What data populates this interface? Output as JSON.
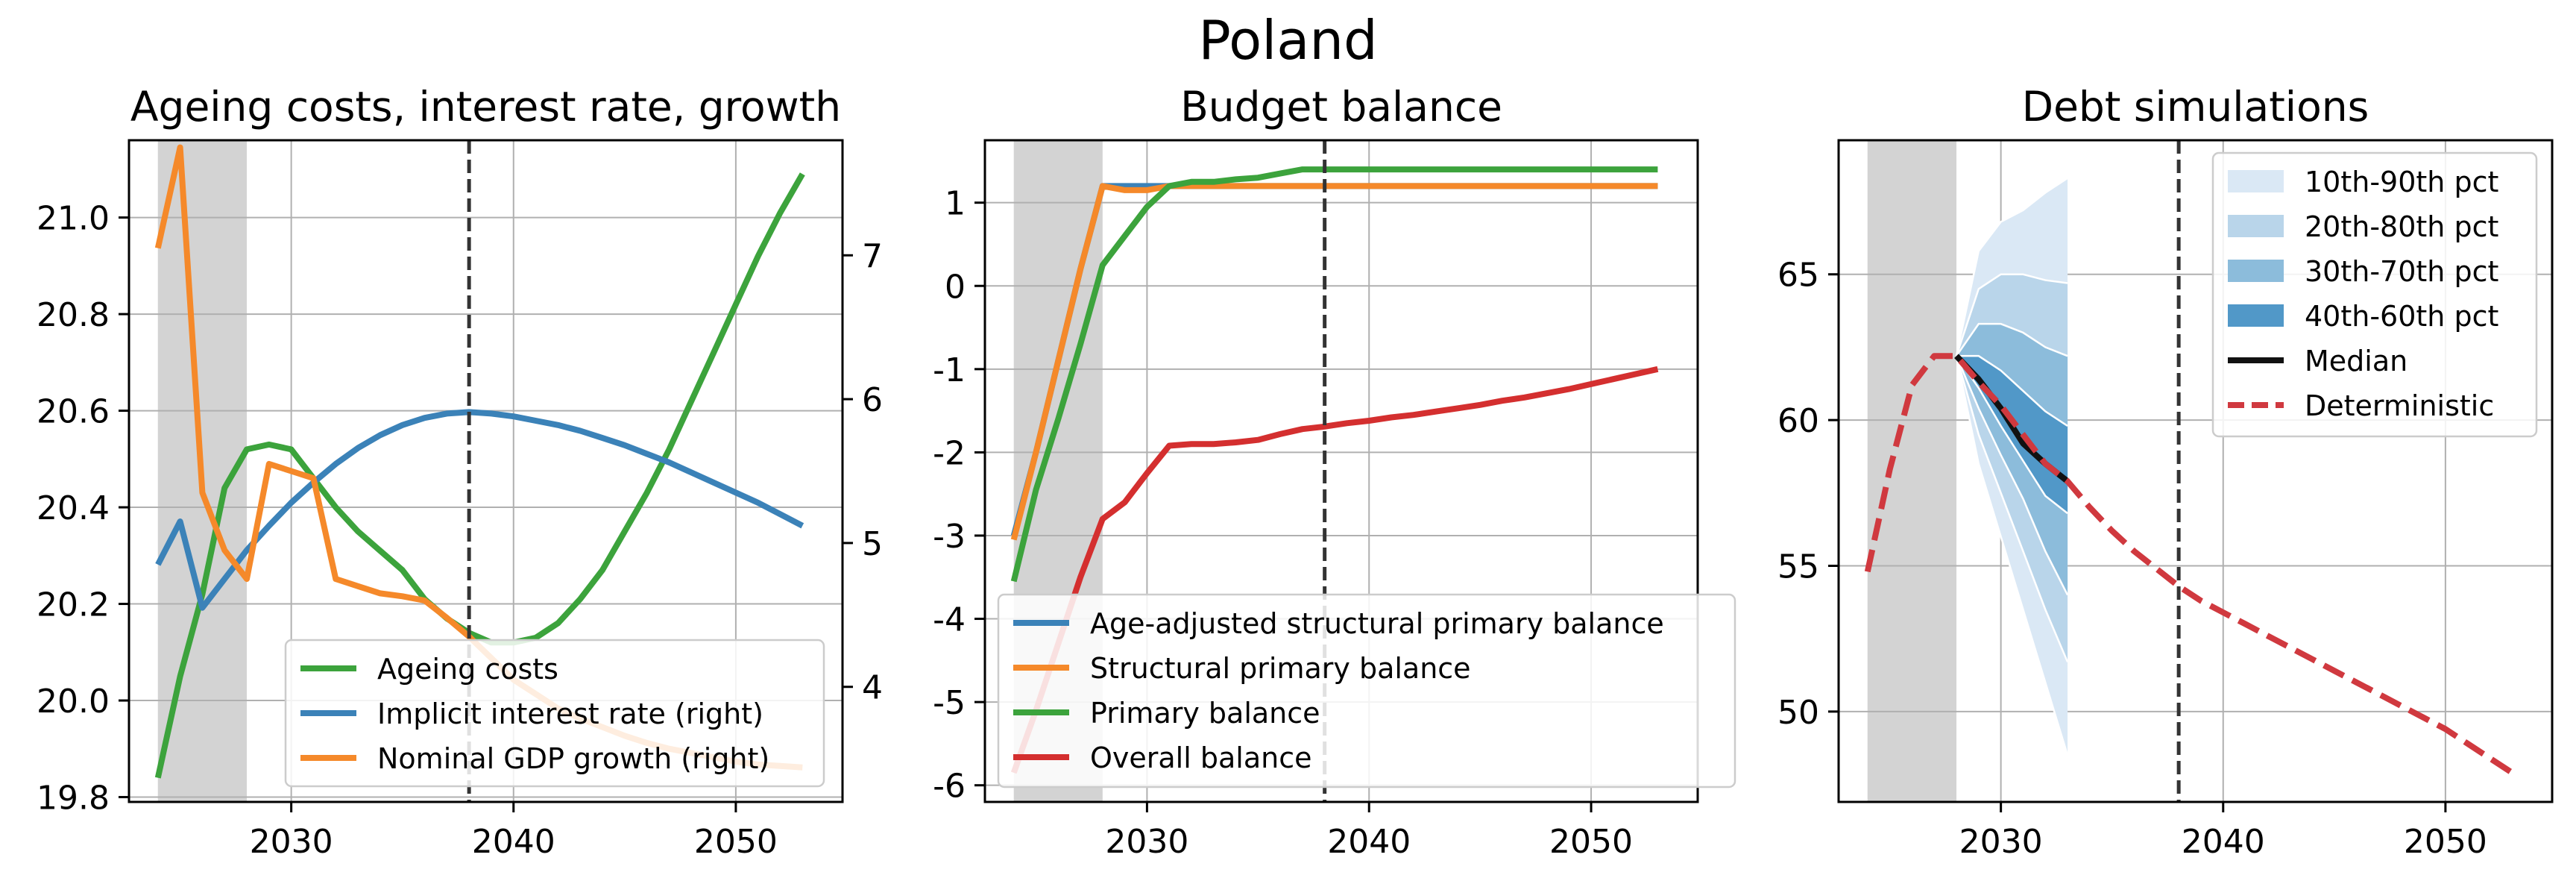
{
  "figure": {
    "title": "Poland"
  },
  "colors": {
    "green": "#3ca33c",
    "blue": "#3b82b8",
    "orange": "#f5892a",
    "red": "#d42f2f",
    "grey_band": "#d3d3d3",
    "dash_line": "#333333",
    "median": "#111111",
    "deterministic": "#d0393f",
    "fan_10_90": "#dae8f5",
    "fan_20_80": "#b9d5ea",
    "fan_30_70": "#8cbcdb",
    "fan_40_60": "#5198c8"
  },
  "chart_data": [
    {
      "type": "line",
      "title": "Ageing costs, interest rate, growth",
      "xlim": [
        2022.7,
        2054.8
      ],
      "xticks": [
        2030,
        2040,
        2050
      ],
      "ylim": [
        19.79,
        21.16
      ],
      "yticks": [
        19.8,
        20.0,
        20.2,
        20.4,
        20.6,
        20.8,
        21.0
      ],
      "ytick_labels": [
        "19.8",
        "20.0",
        "20.2",
        "20.4",
        "20.6",
        "20.8",
        "21.0"
      ],
      "y2lim": [
        3.2,
        7.8
      ],
      "y2ticks": [
        4,
        5,
        6,
        7
      ],
      "y2tick_labels": [
        "4",
        "5",
        "6",
        "7"
      ],
      "shaded_region": [
        2024,
        2028
      ],
      "vline": 2038,
      "legend_position": "lower right",
      "series": [
        {
          "name": "Ageing costs",
          "axis": "left",
          "color": "#3ca33c",
          "x": [
            2024,
            2025,
            2026,
            2027,
            2028,
            2029,
            2030,
            2031,
            2032,
            2033,
            2034,
            2035,
            2036,
            2037,
            2038,
            2039,
            2040,
            2041,
            2042,
            2043,
            2044,
            2045,
            2046,
            2047,
            2048,
            2049,
            2050,
            2051,
            2052,
            2053
          ],
          "y": [
            19.84,
            20.05,
            20.22,
            20.44,
            20.52,
            20.53,
            20.52,
            20.46,
            20.4,
            20.35,
            20.31,
            20.27,
            20.21,
            20.17,
            20.14,
            20.12,
            20.12,
            20.13,
            20.16,
            20.21,
            20.27,
            20.35,
            20.43,
            20.52,
            20.62,
            20.72,
            20.82,
            20.92,
            21.01,
            21.09
          ]
        },
        {
          "name": "Implicit interest rate (right)",
          "axis": "right",
          "color": "#3b82b8",
          "x": [
            2024,
            2025,
            2026,
            2027,
            2028,
            2029,
            2030,
            2031,
            2032,
            2033,
            2034,
            2035,
            2036,
            2037,
            2038,
            2039,
            2040,
            2041,
            2042,
            2043,
            2044,
            2045,
            2046,
            2047,
            2048,
            2049,
            2050,
            2051,
            2052,
            2053
          ],
          "y": [
            4.85,
            5.15,
            4.55,
            4.75,
            4.95,
            5.12,
            5.28,
            5.42,
            5.55,
            5.66,
            5.75,
            5.82,
            5.87,
            5.9,
            5.91,
            5.9,
            5.88,
            5.85,
            5.82,
            5.78,
            5.73,
            5.68,
            5.62,
            5.56,
            5.49,
            5.42,
            5.35,
            5.28,
            5.2,
            5.12
          ]
        },
        {
          "name": "Nominal GDP growth (right)",
          "axis": "right",
          "color": "#f5892a",
          "x": [
            2024,
            2025,
            2026,
            2027,
            2028,
            2029,
            2030,
            2031,
            2032,
            2033,
            2034,
            2035,
            2036,
            2037,
            2038,
            2039,
            2040,
            2041,
            2042,
            2043,
            2044,
            2045,
            2046,
            2047,
            2048,
            2049,
            2050,
            2051,
            2052,
            2053
          ],
          "y": [
            7.05,
            7.75,
            5.35,
            4.95,
            4.75,
            5.55,
            5.5,
            5.45,
            4.75,
            4.7,
            4.65,
            4.63,
            4.6,
            4.48,
            4.35,
            4.2,
            4.05,
            3.95,
            3.85,
            3.78,
            3.72,
            3.66,
            3.61,
            3.57,
            3.54,
            3.51,
            3.48,
            3.46,
            3.45,
            3.44
          ]
        }
      ]
    },
    {
      "type": "line",
      "title": "Budget balance",
      "xlim": [
        2022.7,
        2054.8
      ],
      "xticks": [
        2030,
        2040,
        2050
      ],
      "ylim": [
        -6.2,
        1.75
      ],
      "yticks": [
        -6,
        -5,
        -4,
        -3,
        -2,
        -1,
        0,
        1
      ],
      "ytick_labels": [
        "-6",
        "-5",
        "-4",
        "-3",
        "-2",
        "-1",
        "0",
        "1"
      ],
      "shaded_region": [
        2024,
        2028
      ],
      "vline": 2038,
      "legend_position": "lower left",
      "series": [
        {
          "name": "Age-adjusted structural primary balance",
          "color": "#3b82b8",
          "x": [
            2024,
            2025,
            2026,
            2027,
            2028,
            2029,
            2030,
            2031,
            2032,
            2033,
            2034,
            2035,
            2036,
            2037,
            2038,
            2039,
            2040,
            2041,
            2042,
            2043,
            2044,
            2045,
            2046,
            2047,
            2048,
            2049,
            2050,
            2051,
            2052,
            2053
          ],
          "y": [
            -3.0,
            -2.0,
            -0.9,
            0.2,
            1.2,
            1.2,
            1.2,
            1.2,
            1.2,
            1.2,
            1.2,
            1.2,
            1.2,
            1.2,
            1.2,
            1.2,
            1.2,
            1.2,
            1.2,
            1.2,
            1.2,
            1.2,
            1.2,
            1.2,
            1.2,
            1.2,
            1.2,
            1.2,
            1.2,
            1.2
          ]
        },
        {
          "name": "Structural primary balance",
          "color": "#f5892a",
          "x": [
            2024,
            2025,
            2026,
            2027,
            2028,
            2029,
            2030,
            2031,
            2032,
            2033,
            2034,
            2035,
            2036,
            2037,
            2038,
            2039,
            2040,
            2041,
            2042,
            2043,
            2044,
            2045,
            2046,
            2047,
            2048,
            2049,
            2050,
            2051,
            2052,
            2053
          ],
          "y": [
            -3.05,
            -2.0,
            -0.9,
            0.2,
            1.2,
            1.15,
            1.15,
            1.2,
            1.2,
            1.2,
            1.2,
            1.2,
            1.2,
            1.2,
            1.2,
            1.2,
            1.2,
            1.2,
            1.2,
            1.2,
            1.2,
            1.2,
            1.2,
            1.2,
            1.2,
            1.2,
            1.2,
            1.2,
            1.2,
            1.2
          ]
        },
        {
          "name": "Primary balance",
          "color": "#3ca33c",
          "x": [
            2024,
            2025,
            2026,
            2027,
            2028,
            2029,
            2030,
            2031,
            2032,
            2033,
            2034,
            2035,
            2036,
            2037,
            2038,
            2039,
            2040,
            2041,
            2042,
            2043,
            2044,
            2045,
            2046,
            2047,
            2048,
            2049,
            2050,
            2051,
            2052,
            2053
          ],
          "y": [
            -3.55,
            -2.45,
            -1.6,
            -0.7,
            0.25,
            0.6,
            0.95,
            1.2,
            1.25,
            1.25,
            1.28,
            1.3,
            1.35,
            1.4,
            1.4,
            1.4,
            1.4,
            1.4,
            1.4,
            1.4,
            1.4,
            1.4,
            1.4,
            1.4,
            1.4,
            1.4,
            1.4,
            1.4,
            1.4,
            1.4
          ]
        },
        {
          "name": "Overall balance",
          "color": "#d42f2f",
          "x": [
            2024,
            2025,
            2026,
            2027,
            2028,
            2029,
            2030,
            2031,
            2032,
            2033,
            2034,
            2035,
            2036,
            2037,
            2038,
            2039,
            2040,
            2041,
            2042,
            2043,
            2044,
            2045,
            2046,
            2047,
            2048,
            2049,
            2050,
            2051,
            2052,
            2053
          ],
          "y": [
            -5.85,
            -5.1,
            -4.3,
            -3.5,
            -2.8,
            -2.6,
            -2.25,
            -1.92,
            -1.9,
            -1.9,
            -1.88,
            -1.85,
            -1.78,
            -1.72,
            -1.69,
            -1.65,
            -1.62,
            -1.58,
            -1.55,
            -1.51,
            -1.47,
            -1.43,
            -1.38,
            -1.34,
            -1.29,
            -1.24,
            -1.18,
            -1.12,
            -1.06,
            -1.0
          ]
        }
      ]
    },
    {
      "type": "area",
      "title": "Debt simulations",
      "xlim": [
        2022.7,
        2054.8
      ],
      "xticks": [
        2030,
        2040,
        2050
      ],
      "ylim": [
        46.9,
        69.6
      ],
      "yticks": [
        50,
        55,
        60,
        65
      ],
      "ytick_labels": [
        "50",
        "55",
        "60",
        "65"
      ],
      "shaded_region": [
        2024,
        2028
      ],
      "vline": 2038,
      "legend_position": "upper right",
      "fan_x": [
        2028,
        2029,
        2030,
        2031,
        2032,
        2033
      ],
      "fan_bands": [
        {
          "name": "10th-90th pct",
          "lower": [
            62.2,
            58.5,
            56.0,
            53.5,
            51.0,
            48.5
          ],
          "upper": [
            62.2,
            65.8,
            66.8,
            67.2,
            67.8,
            68.3
          ]
        },
        {
          "name": "20th-80th pct",
          "lower": [
            62.2,
            59.5,
            57.5,
            55.5,
            53.5,
            51.7
          ],
          "upper": [
            62.2,
            64.5,
            65.0,
            65.0,
            64.8,
            64.7
          ]
        },
        {
          "name": "30th-70th pct",
          "lower": [
            62.2,
            60.4,
            58.8,
            57.3,
            55.5,
            54.0
          ],
          "upper": [
            62.2,
            63.3,
            63.3,
            63.0,
            62.5,
            62.2
          ]
        },
        {
          "name": "40th-60th pct",
          "lower": [
            62.2,
            61.1,
            59.8,
            58.6,
            57.4,
            56.8
          ],
          "upper": [
            62.2,
            62.2,
            61.7,
            61.0,
            60.3,
            59.8
          ]
        }
      ],
      "series": [
        {
          "name": "Median",
          "color": "#111111",
          "x": [
            2028,
            2029,
            2030,
            2031,
            2032,
            2033
          ],
          "y": [
            62.2,
            61.4,
            60.4,
            59.2,
            58.5,
            57.9
          ]
        },
        {
          "name": "Deterministic",
          "color": "#d0393f",
          "dashed": true,
          "x": [
            2024,
            2025,
            2026,
            2027,
            2028,
            2029,
            2030,
            2031,
            2032,
            2033,
            2034,
            2035,
            2036,
            2037,
            2038,
            2039,
            2040,
            2041,
            2042,
            2043,
            2044,
            2045,
            2046,
            2047,
            2048,
            2049,
            2050,
            2051,
            2052,
            2053
          ],
          "y": [
            54.8,
            58.3,
            61.2,
            62.2,
            62.2,
            61.3,
            60.5,
            59.5,
            58.5,
            57.9,
            57.0,
            56.2,
            55.5,
            54.9,
            54.3,
            53.8,
            53.4,
            53.0,
            52.6,
            52.2,
            51.8,
            51.4,
            51.0,
            50.6,
            50.2,
            49.8,
            49.4,
            48.9,
            48.4,
            47.9
          ]
        }
      ]
    }
  ]
}
